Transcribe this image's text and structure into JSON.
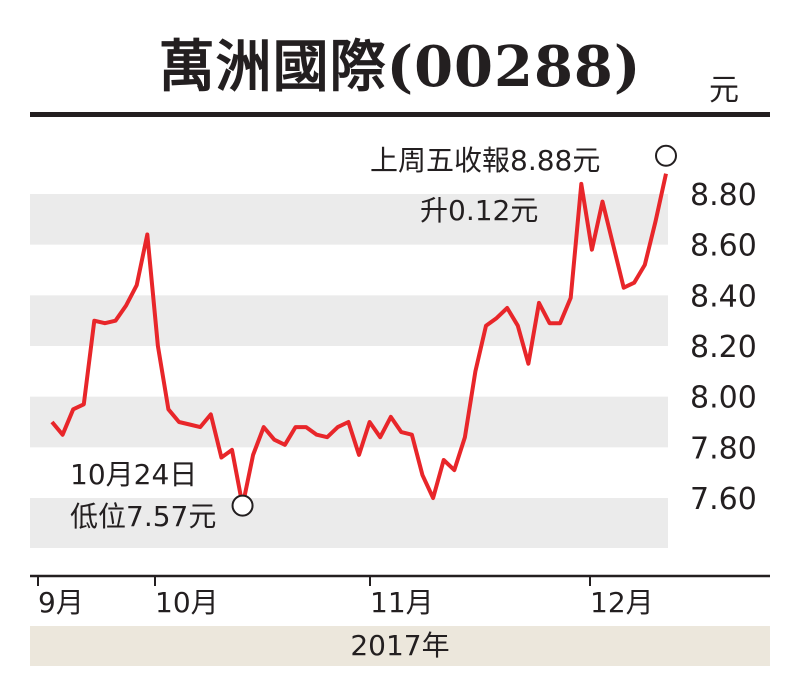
{
  "chart_data": {
    "type": "line",
    "title": "萬洲國際(00288)",
    "unit": "元",
    "x_labels": [
      "9月",
      "10月",
      "11月",
      "12月"
    ],
    "year_label": "2017年",
    "ylim": [
      7.5,
      8.95
    ],
    "yticks": [
      8.8,
      8.6,
      8.4,
      8.2,
      8.0,
      7.8,
      7.6
    ],
    "ytick_labels": [
      "8.80",
      "8.60",
      "8.40",
      "8.20",
      "8.00",
      "7.80",
      "7.60"
    ],
    "grid": "alternating-bands",
    "line_color": "#e8262a",
    "series": [
      {
        "values": [
          7.9,
          7.85,
          7.95,
          7.97,
          8.3,
          8.29,
          8.3,
          8.36,
          8.44,
          8.64,
          8.2,
          7.95,
          7.9,
          7.89,
          7.88,
          7.93,
          7.76,
          7.79,
          7.57,
          7.77,
          7.88,
          7.83,
          7.81,
          7.88,
          7.88,
          7.85,
          7.84,
          7.88,
          7.9,
          7.77,
          7.9,
          7.84,
          7.92,
          7.86,
          7.85,
          7.69,
          7.6,
          7.75,
          7.71,
          7.84,
          8.1,
          8.28,
          8.31,
          8.35,
          8.28,
          8.13,
          8.37,
          8.29,
          8.29,
          8.39,
          8.84,
          8.58,
          8.77,
          8.6,
          8.43,
          8.45,
          8.52,
          8.69,
          8.88
        ]
      }
    ],
    "annotations": {
      "low_date": "10月24日",
      "low_value": "低位7.57元",
      "close_text": "上周五收報8.88元",
      "change_text": "升0.12元"
    }
  }
}
